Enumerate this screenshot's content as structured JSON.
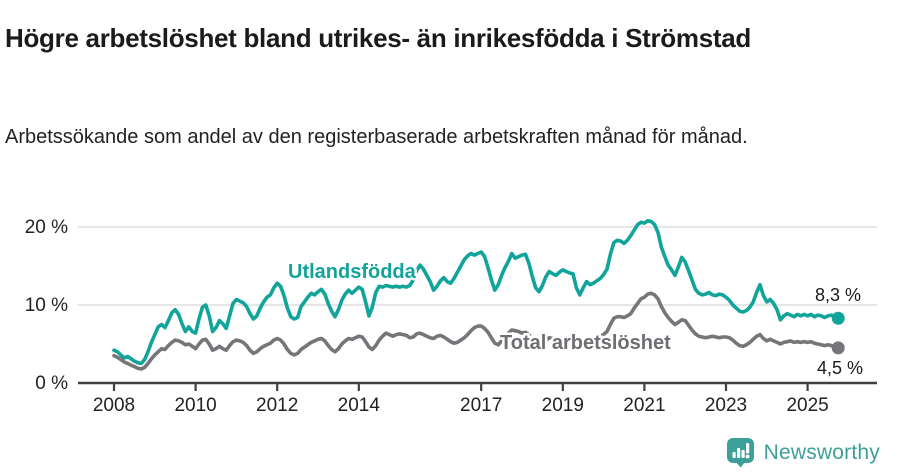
{
  "header": {
    "title": "Högre arbetslöshet bland utrikes- än inrikesfödda i Strömstad",
    "subtitle": "Arbetssökande som andel av den registerbaserade arbetskraften månad för månad."
  },
  "footer": {
    "brand": "Newsworthy",
    "brand_color": "#3d9f9a"
  },
  "colors": {
    "foreign_born_line": "#10a49b",
    "total_line": "#76767a",
    "total_label_text": "#6e6e73",
    "axis": "#3f3f3f",
    "gridline": "#dedede",
    "text": "#222222"
  },
  "chart_data": {
    "type": "line",
    "title": "Högre arbetslöshet bland utrikes- än inrikesfödda i Strömstad",
    "subtitle": "Arbetssökande som andel av den registerbaserade arbetskraften månad för månad.",
    "unit": "%",
    "frequency": "monthly",
    "x_start": "2008-01",
    "x_end": "2025-10",
    "ylim": [
      0,
      22
    ],
    "grid": "horizontal",
    "legend_position": "inline-labels",
    "y_ticks": [
      {
        "value": 0,
        "label": "0 %"
      },
      {
        "value": 10,
        "label": "10 %"
      },
      {
        "value": 20,
        "label": "20 %"
      }
    ],
    "x_ticks": [
      {
        "year": 2008,
        "label": "2008"
      },
      {
        "year": 2010,
        "label": "2010"
      },
      {
        "year": 2012,
        "label": "2012"
      },
      {
        "year": 2014,
        "label": "2014"
      },
      {
        "year": 2017,
        "label": "2017"
      },
      {
        "year": 2019,
        "label": "2019"
      },
      {
        "year": 2021,
        "label": "2021"
      },
      {
        "year": 2023,
        "label": "2023"
      },
      {
        "year": 2025,
        "label": "2025"
      }
    ],
    "series": [
      {
        "name": "Utlandsfödda",
        "color": "#10a49b",
        "end_label": "8,3 %",
        "end_value": 8.3,
        "values": [
          4.2,
          4.0,
          3.6,
          3.2,
          3.4,
          3.1,
          2.8,
          2.6,
          2.5,
          3.0,
          4.0,
          5.2,
          6.2,
          7.2,
          7.5,
          7.1,
          8.0,
          9.0,
          9.4,
          8.8,
          7.6,
          6.6,
          7.2,
          6.6,
          6.4,
          8.2,
          9.7,
          10.0,
          8.6,
          6.6,
          7.1,
          8.0,
          7.6,
          7.0,
          8.6,
          10.2,
          10.7,
          10.5,
          10.3,
          9.8,
          8.9,
          8.2,
          8.6,
          9.6,
          10.4,
          11.0,
          11.3,
          12.2,
          12.8,
          12.4,
          11.2,
          9.6,
          8.5,
          8.2,
          8.4,
          9.8,
          10.4,
          11.0,
          11.5,
          11.3,
          11.7,
          12.0,
          11.4,
          10.2,
          9.2,
          8.5,
          9.4,
          10.6,
          11.4,
          11.9,
          11.5,
          11.9,
          12.3,
          12.0,
          10.4,
          8.6,
          9.8,
          11.6,
          12.4,
          12.3,
          12.5,
          12.4,
          12.3,
          12.4,
          12.3,
          12.4,
          12.3,
          12.5,
          13.2,
          14.4,
          15.1,
          14.6,
          13.8,
          13.0,
          11.9,
          12.4,
          13.1,
          13.5,
          13.0,
          12.8,
          13.4,
          14.2,
          15.0,
          15.8,
          16.3,
          16.6,
          16.4,
          16.6,
          16.8,
          16.2,
          14.8,
          13.2,
          11.9,
          12.6,
          13.8,
          14.8,
          15.6,
          16.6,
          16.0,
          16.2,
          16.4,
          16.5,
          15.4,
          13.7,
          12.2,
          11.7,
          12.5,
          13.6,
          14.3,
          14.0,
          13.8,
          14.2,
          14.5,
          14.3,
          14.1,
          14.0,
          12.2,
          11.3,
          12.2,
          13.0,
          12.6,
          12.8,
          13.1,
          13.4,
          13.9,
          14.6,
          16.5,
          18.0,
          18.3,
          18.2,
          17.9,
          18.3,
          18.9,
          19.6,
          20.3,
          20.6,
          20.5,
          20.8,
          20.7,
          20.3,
          19.3,
          17.4,
          16.2,
          15.1,
          14.5,
          13.8,
          14.9,
          16.1,
          15.5,
          14.4,
          13.2,
          12.0,
          11.5,
          11.3,
          11.4,
          11.6,
          11.3,
          11.2,
          11.4,
          11.3,
          11.0,
          10.6,
          10.0,
          9.6,
          9.2,
          9.1,
          9.3,
          9.7,
          10.4,
          11.6,
          12.6,
          11.2,
          10.4,
          10.7,
          10.2,
          9.4,
          8.1,
          8.6,
          8.9,
          8.7,
          8.5,
          8.8,
          8.6,
          8.8,
          8.6,
          8.8,
          8.5,
          8.7,
          8.6,
          8.4,
          8.6,
          8.7,
          8.5,
          8.3
        ]
      },
      {
        "name": "Total arbetslöshet",
        "color": "#76767a",
        "end_label": "4,5 %",
        "end_value": 4.5,
        "values": [
          3.5,
          3.3,
          3.0,
          2.7,
          2.5,
          2.3,
          2.1,
          1.9,
          1.8,
          2.0,
          2.5,
          3.1,
          3.6,
          4.0,
          4.4,
          4.3,
          4.8,
          5.2,
          5.5,
          5.4,
          5.2,
          4.9,
          5.0,
          4.7,
          4.4,
          5.0,
          5.5,
          5.6,
          5.0,
          4.2,
          4.4,
          4.7,
          4.4,
          4.2,
          4.8,
          5.3,
          5.5,
          5.4,
          5.2,
          4.8,
          4.2,
          3.8,
          4.0,
          4.4,
          4.7,
          4.9,
          5.1,
          5.5,
          5.7,
          5.5,
          5.0,
          4.3,
          3.8,
          3.6,
          3.8,
          4.3,
          4.6,
          4.9,
          5.2,
          5.4,
          5.6,
          5.7,
          5.4,
          4.8,
          4.3,
          4.0,
          4.4,
          5.0,
          5.4,
          5.7,
          5.6,
          5.8,
          6.0,
          5.9,
          5.3,
          4.6,
          4.3,
          4.8,
          5.5,
          6.0,
          6.4,
          6.2,
          6.0,
          6.2,
          6.3,
          6.2,
          6.1,
          5.8,
          5.9,
          6.3,
          6.4,
          6.2,
          6.0,
          5.8,
          5.7,
          6.0,
          6.1,
          5.9,
          5.6,
          5.3,
          5.1,
          5.2,
          5.5,
          5.8,
          6.2,
          6.7,
          7.1,
          7.3,
          7.3,
          7.0,
          6.5,
          5.8,
          5.1,
          4.9,
          5.4,
          5.9,
          6.4,
          6.8,
          6.7,
          6.6,
          6.4,
          6.5,
          6.2,
          5.6,
          5.0,
          4.7,
          5.0,
          5.5,
          5.8,
          5.7,
          5.6,
          5.7,
          5.8,
          5.8,
          5.7,
          5.4,
          4.8,
          4.6,
          5.0,
          5.4,
          5.3,
          5.5,
          5.7,
          6.0,
          6.2,
          6.6,
          7.5,
          8.3,
          8.5,
          8.5,
          8.4,
          8.6,
          8.9,
          9.6,
          10.2,
          10.8,
          11.0,
          11.4,
          11.5,
          11.3,
          10.8,
          9.8,
          9.0,
          8.4,
          7.9,
          7.5,
          7.8,
          8.1,
          8.0,
          7.4,
          6.8,
          6.3,
          6.0,
          5.9,
          5.8,
          5.9,
          6.0,
          5.9,
          5.8,
          5.9,
          5.9,
          5.8,
          5.5,
          5.1,
          4.8,
          4.7,
          4.9,
          5.2,
          5.6,
          6.0,
          6.2,
          5.7,
          5.4,
          5.6,
          5.4,
          5.2,
          5.0,
          5.2,
          5.3,
          5.4,
          5.2,
          5.3,
          5.2,
          5.3,
          5.2,
          5.3,
          5.1,
          5.0,
          4.9,
          4.8,
          4.9,
          4.8,
          4.6,
          4.5
        ]
      }
    ]
  }
}
